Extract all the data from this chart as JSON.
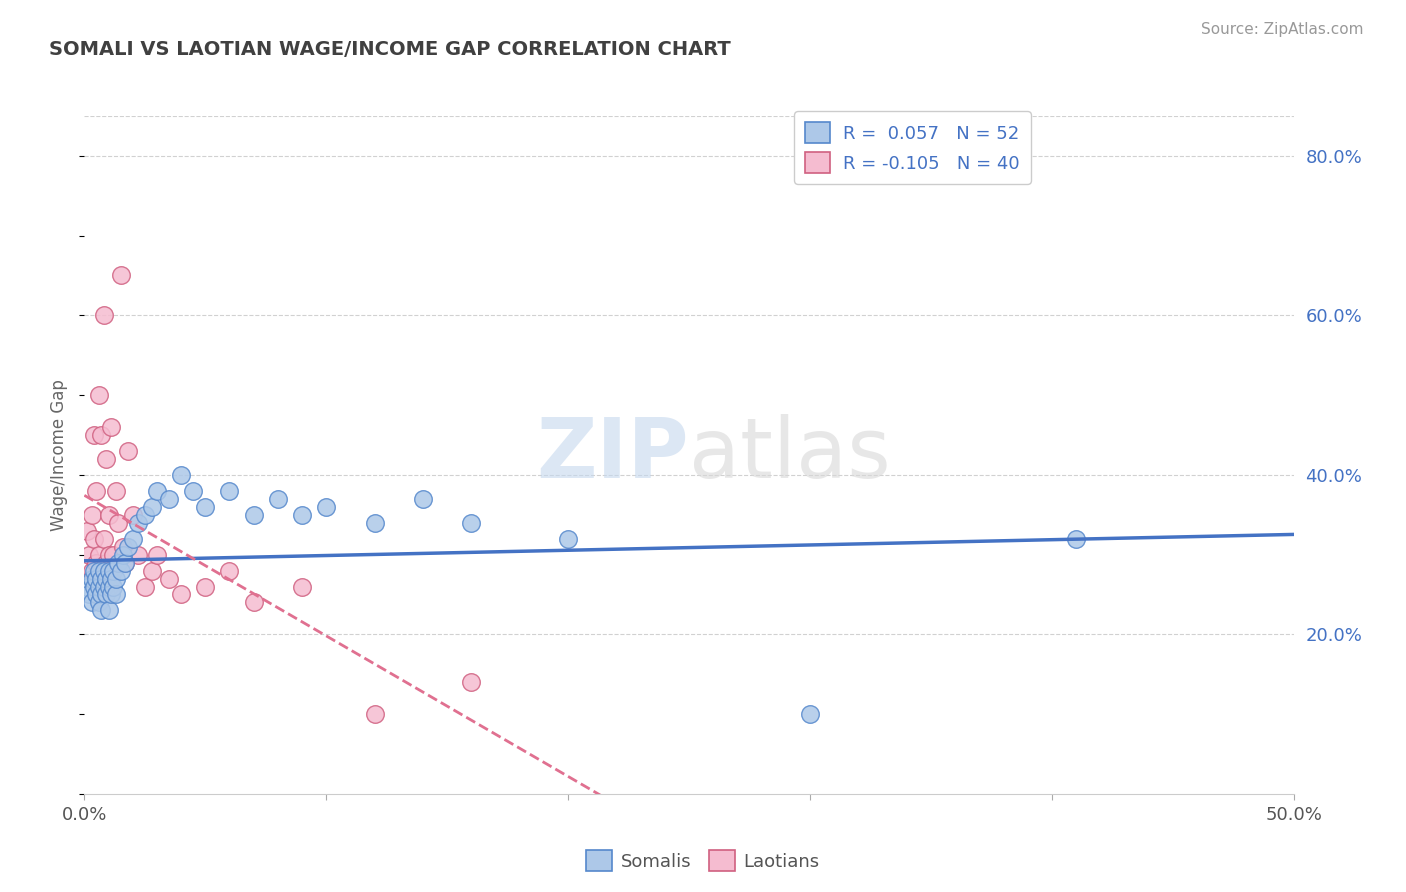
{
  "title": "SOMALI VS LAOTIAN WAGE/INCOME GAP CORRELATION CHART",
  "source_text": "Source: ZipAtlas.com",
  "ylabel": "Wage/Income Gap",
  "xlim": [
    0.0,
    0.5
  ],
  "ylim": [
    0.0,
    0.85
  ],
  "xtick_positions": [
    0.0,
    0.1,
    0.2,
    0.3,
    0.4,
    0.5
  ],
  "xticklabels": [
    "0.0%",
    "",
    "",
    "",
    "",
    "50.0%"
  ],
  "yticks_right": [
    0.2,
    0.4,
    0.6,
    0.8
  ],
  "ytick_right_labels": [
    "20.0%",
    "40.0%",
    "60.0%",
    "80.0%"
  ],
  "somali_R": 0.057,
  "somali_N": 52,
  "laotian_R": -0.105,
  "laotian_N": 40,
  "somali_color": "#adc8e8",
  "somali_edge_color": "#5588cc",
  "laotian_color": "#f5bcd0",
  "laotian_edge_color": "#d06080",
  "somali_line_color": "#4472c4",
  "laotian_line_color": "#e07090",
  "background_color": "#ffffff",
  "grid_color": "#cccccc",
  "somali_x": [
    0.001,
    0.002,
    0.003,
    0.003,
    0.004,
    0.004,
    0.005,
    0.005,
    0.006,
    0.006,
    0.006,
    0.007,
    0.007,
    0.007,
    0.008,
    0.008,
    0.009,
    0.009,
    0.01,
    0.01,
    0.01,
    0.011,
    0.011,
    0.012,
    0.012,
    0.013,
    0.013,
    0.014,
    0.015,
    0.016,
    0.017,
    0.018,
    0.02,
    0.022,
    0.025,
    0.028,
    0.03,
    0.035,
    0.04,
    0.045,
    0.05,
    0.06,
    0.07,
    0.08,
    0.09,
    0.1,
    0.12,
    0.14,
    0.16,
    0.2,
    0.3,
    0.41
  ],
  "somali_y": [
    0.26,
    0.25,
    0.27,
    0.24,
    0.26,
    0.28,
    0.25,
    0.27,
    0.24,
    0.26,
    0.28,
    0.25,
    0.27,
    0.23,
    0.26,
    0.28,
    0.25,
    0.27,
    0.26,
    0.28,
    0.23,
    0.27,
    0.25,
    0.26,
    0.28,
    0.25,
    0.27,
    0.29,
    0.28,
    0.3,
    0.29,
    0.31,
    0.32,
    0.34,
    0.35,
    0.36,
    0.38,
    0.37,
    0.4,
    0.38,
    0.36,
    0.38,
    0.35,
    0.37,
    0.35,
    0.36,
    0.34,
    0.37,
    0.34,
    0.32,
    0.1,
    0.32
  ],
  "laotian_x": [
    0.001,
    0.002,
    0.003,
    0.003,
    0.004,
    0.004,
    0.005,
    0.005,
    0.006,
    0.006,
    0.007,
    0.007,
    0.008,
    0.008,
    0.009,
    0.009,
    0.01,
    0.01,
    0.011,
    0.011,
    0.012,
    0.013,
    0.014,
    0.015,
    0.016,
    0.017,
    0.018,
    0.02,
    0.022,
    0.025,
    0.028,
    0.03,
    0.035,
    0.04,
    0.05,
    0.06,
    0.07,
    0.09,
    0.12,
    0.16
  ],
  "laotian_y": [
    0.33,
    0.3,
    0.35,
    0.28,
    0.32,
    0.45,
    0.29,
    0.38,
    0.3,
    0.5,
    0.28,
    0.45,
    0.32,
    0.6,
    0.29,
    0.42,
    0.35,
    0.3,
    0.28,
    0.46,
    0.3,
    0.38,
    0.34,
    0.65,
    0.31,
    0.29,
    0.43,
    0.35,
    0.3,
    0.26,
    0.28,
    0.3,
    0.27,
    0.25,
    0.26,
    0.28,
    0.24,
    0.26,
    0.1,
    0.14
  ]
}
